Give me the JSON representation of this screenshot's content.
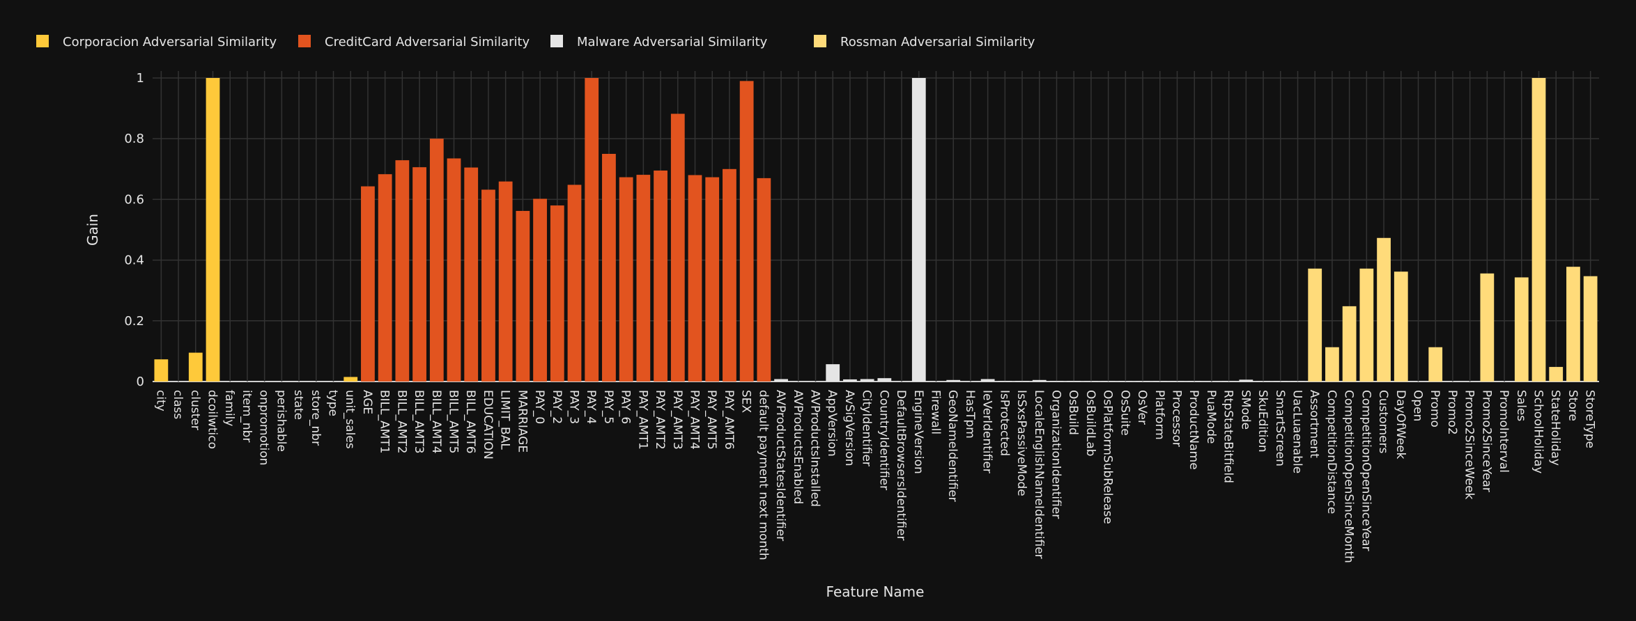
{
  "chart_data": {
    "type": "bar",
    "xlabel": "Feature Name",
    "ylabel": "Gain",
    "ylim": [
      0,
      1.03
    ],
    "yticks": [
      0,
      0.2,
      0.4,
      0.6,
      0.8,
      1
    ],
    "ytick_labels": [
      "0",
      "0.2",
      "0.4",
      "0.6",
      "0.8",
      "1"
    ],
    "grid": true,
    "legend_position": "top-left horizontal",
    "background": "#111111",
    "series": [
      {
        "name": "Corporacion Adversarial Similarity",
        "color": "#FEC93A",
        "categories": [
          "city",
          "class",
          "cluster",
          "dcoilwtico",
          "family",
          "item_nbr",
          "onpromotion",
          "perishable",
          "state",
          "store_nbr",
          "type",
          "unit_sales"
        ],
        "values": [
          0.073,
          0,
          0.095,
          1,
          0,
          0,
          0,
          0,
          0,
          0,
          0,
          0.015
        ]
      },
      {
        "name": "CreditCard Adversarial Similarity",
        "color": "#E2541F",
        "categories": [
          "AGE",
          "BILL_AMT1",
          "BILL_AMT2",
          "BILL_AMT3",
          "BILL_AMT4",
          "BILL_AMT5",
          "BILL_AMT6",
          "EDUCATION",
          "LIMIT_BAL",
          "MARRIAGE",
          "PAY_0",
          "PAY_2",
          "PAY_3",
          "PAY_4",
          "PAY_5",
          "PAY_6",
          "PAY_AMT1",
          "PAY_AMT2",
          "PAY_AMT3",
          "PAY_AMT4",
          "PAY_AMT5",
          "PAY_AMT6",
          "SEX",
          "default payment next month"
        ],
        "values": [
          0.643,
          0.683,
          0.729,
          0.706,
          0.8,
          0.735,
          0.705,
          0.632,
          0.659,
          0.562,
          0.602,
          0.58,
          0.648,
          1,
          0.75,
          0.673,
          0.681,
          0.695,
          0.882,
          0.68,
          0.673,
          0.7,
          0.99,
          0.67
        ]
      },
      {
        "name": "Malware Adversarial Similarity",
        "color": "#E5E5E5",
        "categories": [
          "AVProductStatesIdentifier",
          "AVProductsEnabled",
          "AVProductsInstalled",
          "AppVersion",
          "AvSigVersion",
          "CityIdentifier",
          "CountryIdentifier",
          "DefaultBrowsersIdentifier",
          "EngineVersion",
          "Firewall",
          "GeoNameIdentifier",
          "HasTpm",
          "IeVerIdentifier",
          "IsProtected",
          "IsSxsPassiveMode",
          "LocaleEnglishNameIdentifier",
          "OrganizationIdentifier",
          "OsBuild",
          "OsBuildLab",
          "OsPlatformSubRelease",
          "OsSuite",
          "OsVer",
          "Platform",
          "Processor",
          "ProductName",
          "PuaMode",
          "RtpStateBitfield",
          "SMode",
          "SkuEdition",
          "SmartScreen",
          "UacLuaenable"
        ],
        "values": [
          0.008,
          0,
          0,
          0.057,
          0.007,
          0.008,
          0.011,
          0,
          1,
          0,
          0.005,
          0,
          0.008,
          0.002,
          0.002,
          0.005,
          0.002,
          0.002,
          0.001,
          0.001,
          0.001,
          0.001,
          0.001,
          0.001,
          0.001,
          0,
          0.001,
          0.006,
          0.001,
          0.001,
          0.001
        ]
      },
      {
        "name": "Rossman Adversarial Similarity",
        "color": "#FFDB7A",
        "categories": [
          "Assortment",
          "CompetitionDistance",
          "CompetitionOpenSinceMonth",
          "CompetitionOpenSinceYear",
          "Customers",
          "DayOfWeek",
          "Open",
          "Promo",
          "Promo2",
          "Promo2SinceWeek",
          "Promo2SinceYear",
          "PromoInterval",
          "Sales",
          "SchoolHoliday",
          "StateHoliday",
          "Store",
          "StoreType"
        ],
        "values": [
          0.372,
          0.113,
          0.248,
          0.372,
          0.473,
          0.362,
          0,
          0.113,
          0,
          0,
          0.356,
          0,
          0.343,
          1,
          0.048,
          0.378,
          0.347
        ]
      }
    ]
  }
}
